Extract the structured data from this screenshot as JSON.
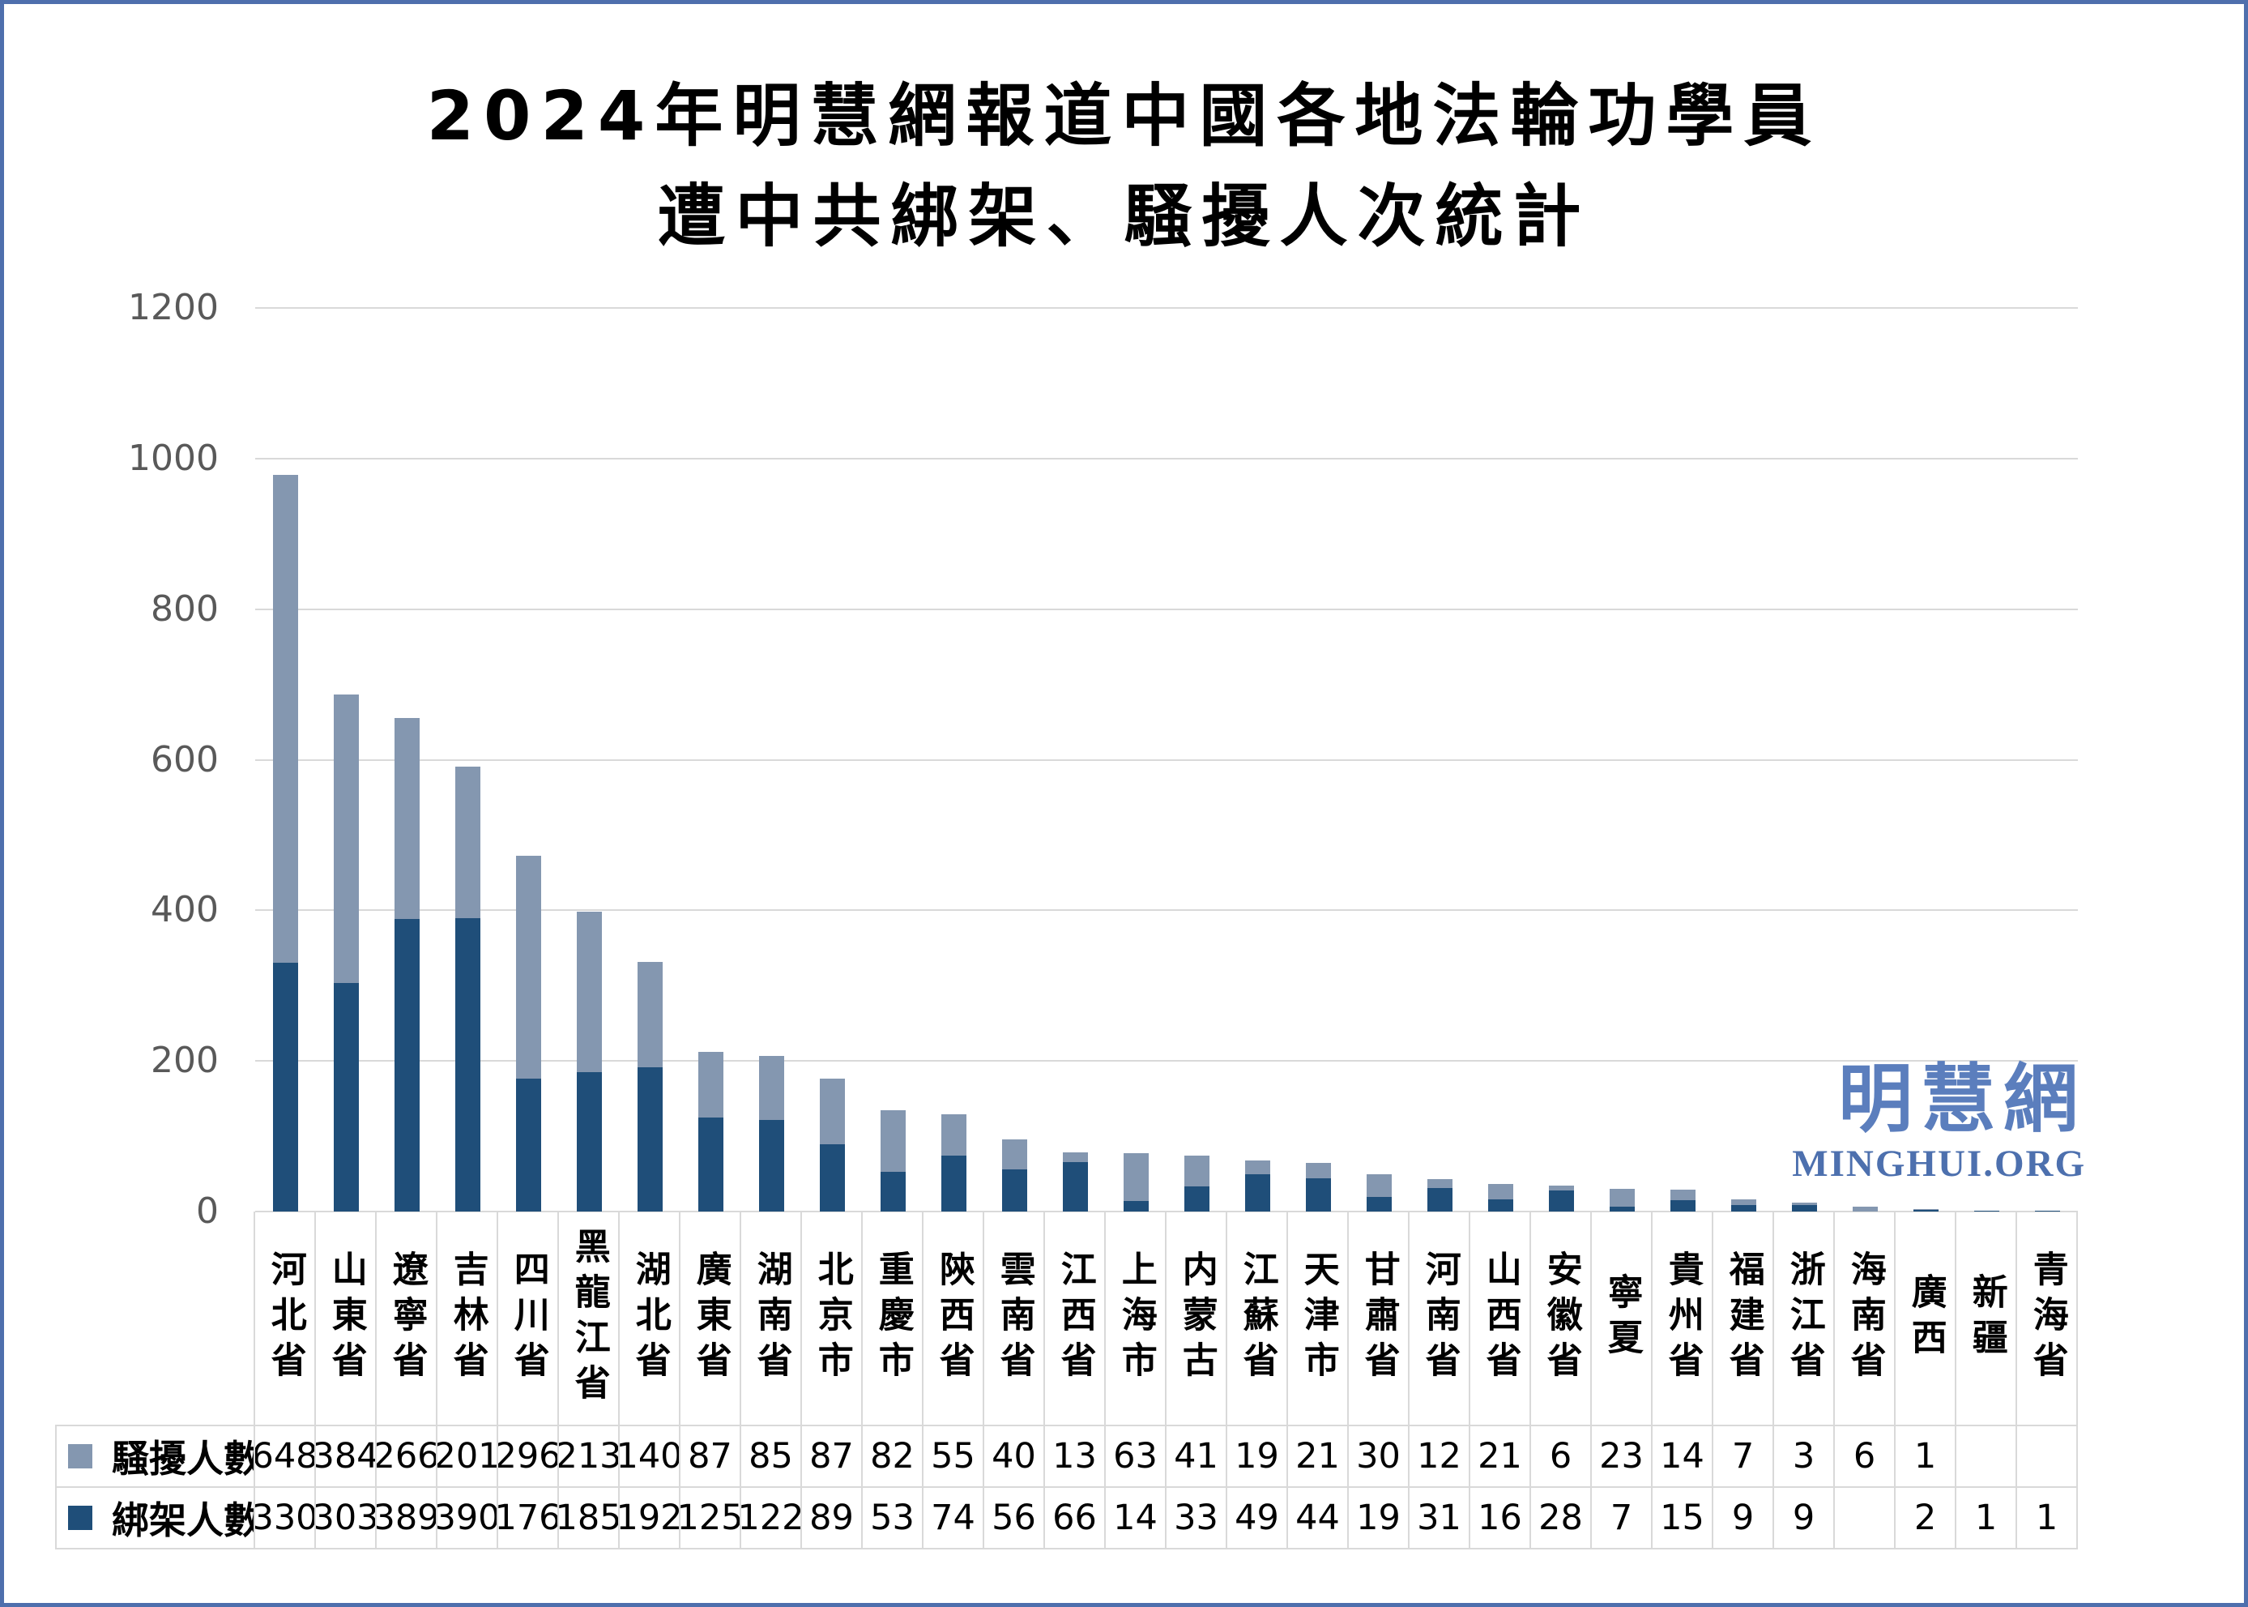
{
  "title": {
    "line1": "2024年明慧網報道中國各地法輪功學員",
    "line2": "遭中共綁架、騷擾人次統計"
  },
  "watermark": {
    "cjk": "明慧網",
    "latin": "MINGHUI.ORG"
  },
  "chart_data": {
    "type": "bar",
    "stacked": true,
    "title": "2024年明慧網報道中國各地法輪功學員遭中共綁架、騷擾人次統計",
    "categories": [
      "河北省",
      "山東省",
      "遼寧省",
      "吉林省",
      "四川省",
      "黑龍江省",
      "湖北省",
      "廣東省",
      "湖南省",
      "北京市",
      "重慶市",
      "陝西省",
      "雲南省",
      "江西省",
      "上海市",
      "内蒙古",
      "江蘇省",
      "天津市",
      "甘肅省",
      "河南省",
      "山西省",
      "安徽省",
      "寧夏",
      "貴州省",
      "福建省",
      "浙江省",
      "海南省",
      "廣西",
      "新疆",
      "青海省"
    ],
    "series": [
      {
        "name": "騷擾人數",
        "color": "#8497B0",
        "stack_position": "top",
        "values": [
          648,
          384,
          266,
          201,
          296,
          213,
          140,
          87,
          85,
          87,
          82,
          55,
          40,
          13,
          63,
          41,
          19,
          21,
          30,
          12,
          21,
          6,
          23,
          14,
          7,
          3,
          6,
          1,
          null,
          null
        ]
      },
      {
        "name": "綁架人數",
        "color": "#1F4E79",
        "stack_position": "bottom",
        "values": [
          330,
          303,
          389,
          390,
          176,
          185,
          192,
          125,
          122,
          89,
          53,
          74,
          56,
          66,
          14,
          33,
          49,
          44,
          19,
          31,
          16,
          28,
          7,
          15,
          9,
          9,
          null,
          2,
          1,
          1
        ]
      }
    ],
    "ylim": [
      0,
      1200
    ],
    "yticks": [
      0,
      200,
      400,
      600,
      800,
      1000,
      1200
    ],
    "grid": true,
    "legend_position": "data-table-left",
    "colors": {
      "gridline": "#D9D9D9",
      "axis_text": "#595959",
      "table_border": "#D9D9D9",
      "frame_border": "#4E6FAD",
      "watermark_cjk": "#5B7EBD",
      "watermark_latin": "#4D70AE"
    }
  }
}
